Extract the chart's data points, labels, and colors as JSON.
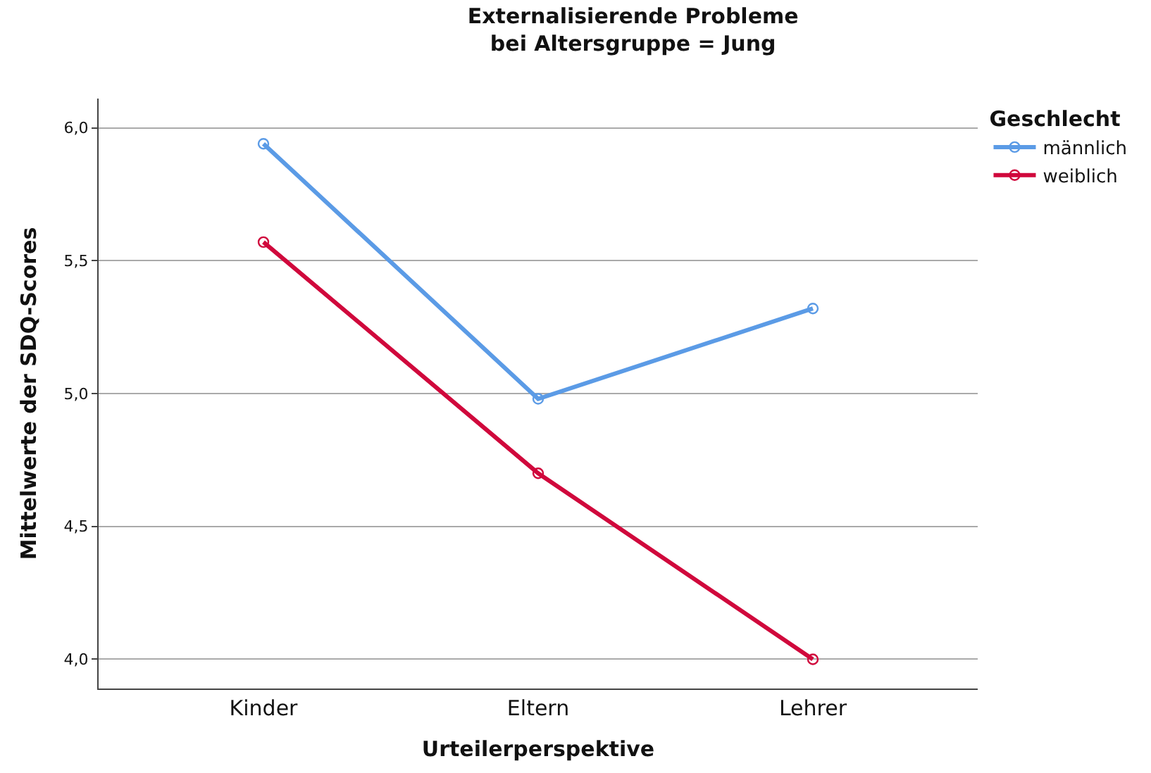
{
  "chart_data": {
    "type": "line",
    "title": "Externalisierende Probleme",
    "subtitle": "bei Altersgruppe = Jung",
    "xlabel": "Urteilerperspektive",
    "ylabel": "Mittelwerte der SDQ-Scores",
    "legend_title": "Geschlecht",
    "categories": [
      "Kinder",
      "Eltern",
      "Lehrer"
    ],
    "series": [
      {
        "name": "männlich",
        "color": "#5b9be6",
        "values": [
          5.94,
          4.98,
          5.32
        ]
      },
      {
        "name": "weiblich",
        "color": "#d0083c",
        "values": [
          5.57,
          4.7,
          4.0
        ]
      }
    ],
    "ylim": [
      3.89,
      6.11
    ],
    "yticks": [
      {
        "value": 4.0,
        "label": "4,0"
      },
      {
        "value": 4.5,
        "label": "4,5"
      },
      {
        "value": 5.0,
        "label": "5,0"
      },
      {
        "value": 5.5,
        "label": "5,5"
      },
      {
        "value": 6.0,
        "label": "6,0"
      }
    ],
    "grid": "y",
    "legend": "top right",
    "marker": "circle",
    "line_style": "solid"
  }
}
